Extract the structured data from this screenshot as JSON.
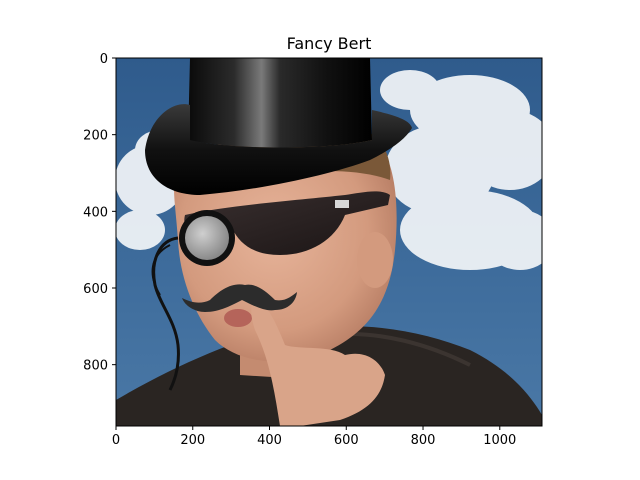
{
  "chart_data": {
    "type": "image",
    "title": "Fancy Bert",
    "xlabel": "",
    "ylabel": "",
    "xlim": [
      0,
      1110
    ],
    "ylim": [
      960,
      0
    ],
    "x_ticks": [
      0,
      200,
      400,
      600,
      800,
      1000
    ],
    "y_ticks": [
      0,
      200,
      400,
      600,
      800
    ],
    "x_tick_labels": [
      "0",
      "200",
      "400",
      "600",
      "800",
      "1000"
    ],
    "y_tick_labels": [
      "0",
      "200",
      "400",
      "600",
      "800"
    ],
    "grid": false,
    "image_content": [
      "sky",
      "clouds",
      "boy",
      "sunglasses",
      "top-hat",
      "monocle",
      "mustache"
    ]
  }
}
